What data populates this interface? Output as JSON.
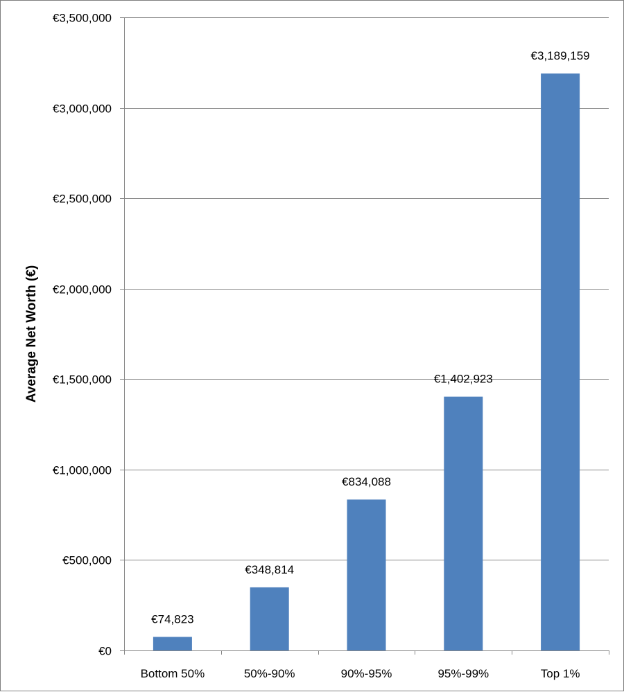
{
  "chart_data": {
    "type": "bar",
    "title": "",
    "xlabel": "",
    "ylabel": "Average Net Worth (€)",
    "categories": [
      "Bottom 50%",
      "50%-90%",
      "90%-95%",
      "95%-99%",
      "Top 1%"
    ],
    "values": [
      74823,
      348814,
      834088,
      1402923,
      3189159
    ],
    "data_labels": [
      "€74,823",
      "€348,814",
      "€834,088",
      "€1,402,923",
      "€3,189,159"
    ],
    "ylim": [
      0,
      3500000
    ],
    "yticks": [
      0,
      500000,
      1000000,
      1500000,
      2000000,
      2500000,
      3000000,
      3500000
    ],
    "ytick_labels": [
      "€0",
      "€500,000",
      "€1,000,000",
      "€1,500,000",
      "€2,000,000",
      "€2,500,000",
      "€3,000,000",
      "€3,500,000"
    ],
    "grid": true,
    "legend": "none",
    "bar_color": "#4f81bd"
  }
}
